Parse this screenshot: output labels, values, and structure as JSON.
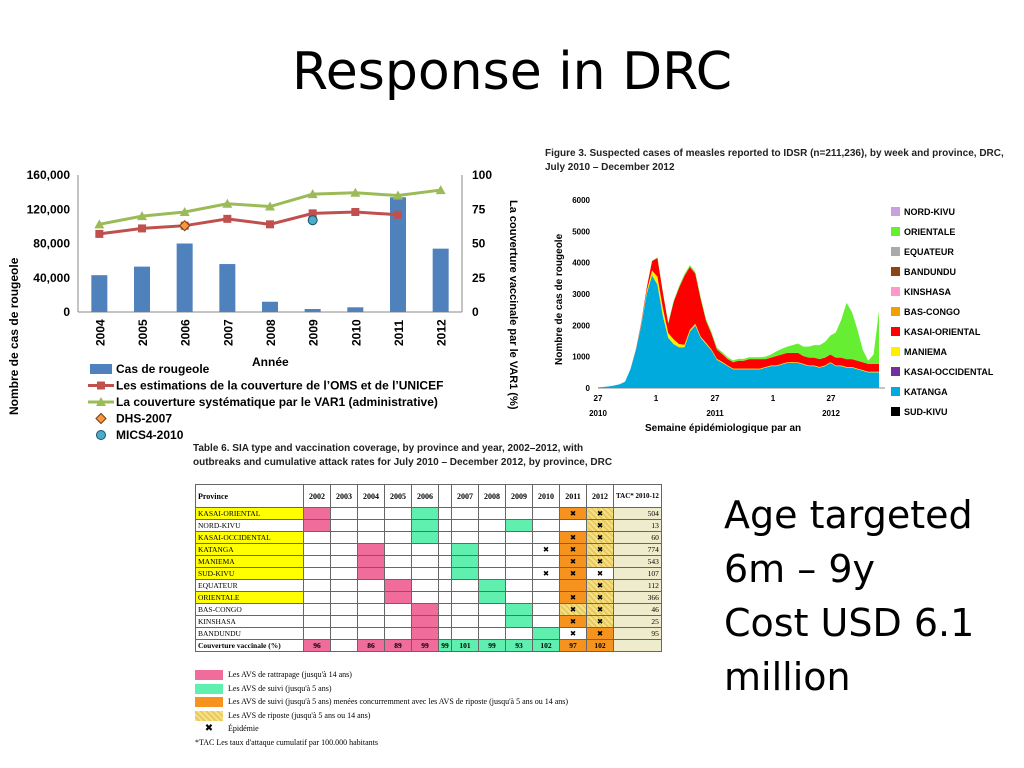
{
  "slide": {
    "title": "Response in DRC",
    "note_lines": [
      "Age targeted",
      "6m – 9y",
      "Cost USD 6.1",
      "million"
    ]
  },
  "chart_data": [
    {
      "type": "bar",
      "categories": [
        "2004",
        "2005",
        "2006",
        "2007",
        "2008",
        "2009",
        "2010",
        "2011",
        "2012"
      ],
      "series": [
        {
          "name": "Cas de rougeole",
          "type": "bar",
          "axis": "left",
          "color": "#4f81bd",
          "values": [
            43000,
            53000,
            80000,
            56000,
            12000,
            3500,
            5500,
            134000,
            74000
          ]
        },
        {
          "name": "Les estimations de la couverture de l’OMS et de l’UNICEF",
          "type": "line",
          "axis": "right",
          "color": "#c0504d",
          "values": [
            57,
            61,
            63,
            68,
            64,
            72,
            73,
            71,
            null
          ]
        },
        {
          "name": "La couverture systématique par le VAR1 (administrative)",
          "type": "line",
          "axis": "right",
          "color": "#9bbb59",
          "values": [
            64,
            70,
            73,
            79,
            77,
            86,
            87,
            85,
            89
          ]
        },
        {
          "name": "DHS-2007",
          "type": "point",
          "axis": "right",
          "color": "#f79646",
          "x": "2006",
          "value": 63
        },
        {
          "name": "MICS4-2010",
          "type": "point",
          "axis": "right",
          "color": "#4bacc6",
          "x": "2009",
          "value": 67
        }
      ],
      "xlabel": "Année",
      "ylabel": "Nombre de cas de rougeole",
      "ylabel_right": "La couverture vaccinale par le VAR1 (%)",
      "ylim": [
        0,
        160000
      ],
      "ylim_right": [
        0,
        100
      ],
      "yticks": [
        "0",
        "40,000",
        "80,000",
        "120,000",
        "160,000"
      ],
      "yticks_right": [
        "0",
        "25",
        "50",
        "75",
        "100"
      ],
      "grid": false,
      "legend": "bottom"
    },
    {
      "type": "area",
      "title": "Figure 3. Suspected cases of measles reported to IDSR (n=211,236), by week and province, DRC, July 2010 – December 2012",
      "xlabel": "Semaine épidémiologique par an",
      "ylabel": "Nombre de cas de rougeole",
      "ylim": [
        0,
        6000
      ],
      "yticks": [
        "0",
        "1000",
        "2000",
        "3000",
        "4000",
        "5000",
        "6000"
      ],
      "xticks": [
        "27",
        "1",
        "27",
        "1",
        "27"
      ],
      "year_labels": [
        "2010",
        "2011",
        "2012"
      ],
      "legend": "right",
      "series": [
        {
          "name": "NORD-KIVU",
          "color": "#c9a0dc"
        },
        {
          "name": "ORIENTALE",
          "color": "#66ee33",
          "values": [
            0,
            0,
            0,
            0,
            0,
            0,
            0,
            0,
            0,
            0,
            10,
            20,
            30,
            40,
            40,
            50,
            60,
            60,
            60,
            60,
            60,
            60,
            60,
            60,
            60,
            60,
            60,
            60,
            60,
            60,
            60,
            80,
            100,
            150,
            180,
            200,
            250,
            300,
            300,
            350,
            400,
            450,
            500,
            600,
            800,
            1200,
            1800,
            1500,
            1000,
            400,
            100,
            300,
            1700
          ]
        },
        {
          "name": "EQUATEUR",
          "color": "#aaaaaa"
        },
        {
          "name": "BANDUNDU",
          "color": "#8b4513"
        },
        {
          "name": "KINSHASA",
          "color": "#ff99cc"
        },
        {
          "name": "BAS-CONGO",
          "color": "#f0a000"
        },
        {
          "name": "KASAI-ORIENTAL",
          "color": "#ff0000",
          "values": [
            0,
            0,
            0,
            0,
            0,
            0,
            0,
            20,
            50,
            100,
            300,
            600,
            500,
            300,
            1200,
            1800,
            2200,
            2000,
            1600,
            1200,
            700,
            500,
            300,
            250,
            200,
            200,
            250,
            250,
            300,
            300,
            300,
            250,
            250,
            300,
            300,
            300,
            300,
            300,
            250,
            250,
            250,
            250,
            250,
            250,
            250,
            250,
            250,
            250,
            250,
            250,
            250,
            250,
            250
          ]
        },
        {
          "name": "MANIEMA",
          "color": "#ffee00",
          "values": [
            0,
            0,
            0,
            0,
            0,
            0,
            0,
            10,
            40,
            80,
            150,
            250,
            250,
            150,
            150,
            100,
            80,
            60,
            50,
            40,
            40,
            30,
            30,
            30,
            20,
            20,
            20,
            20,
            20,
            20,
            20,
            20,
            20,
            20,
            20,
            20,
            20,
            20,
            20,
            20,
            20,
            20,
            20,
            20,
            20,
            20,
            20,
            20,
            20,
            20,
            20,
            20,
            20
          ]
        },
        {
          "name": "KASAI-OCCIDENTAL",
          "color": "#7030a0"
        },
        {
          "name": "KATANGA",
          "color": "#00aadd",
          "values": [
            20,
            30,
            50,
            80,
            120,
            200,
            600,
            1200,
            2000,
            3000,
            3600,
            3300,
            2300,
            1600,
            1400,
            1300,
            1300,
            1800,
            2000,
            1600,
            1400,
            1200,
            900,
            800,
            700,
            600,
            600,
            600,
            600,
            600,
            600,
            650,
            700,
            700,
            750,
            800,
            800,
            800,
            750,
            700,
            700,
            650,
            700,
            800,
            700,
            700,
            650,
            650,
            600,
            550,
            500,
            500,
            500
          ]
        },
        {
          "name": "SUD-KIVU",
          "color": "#000000"
        }
      ]
    },
    {
      "type": "table",
      "title": "Table 6. SIA type and vaccination coverage, by province and year, 2002–2012, with outbreaks and cumulative attack rates for July 2010 – December 2012, by province, DRC",
      "columns": [
        "Province",
        "2002",
        "2003",
        "2004",
        "2005",
        "2006",
        "",
        "2007",
        "2008",
        "2009",
        "2010",
        "2011",
        "2012",
        "TAC* 2010-12"
      ],
      "rows": [
        {
          "province": "KASAI-ORIENTAL",
          "hl": true,
          "cells": [
            "ctch",
            "",
            "",
            "",
            "foll",
            "",
            "",
            "",
            "",
            "",
            "conc-x",
            "resp-x"
          ],
          "tac": "504"
        },
        {
          "province": "NORD-KIVU",
          "hl": false,
          "cells": [
            "ctch",
            "",
            "",
            "",
            "foll",
            "",
            "",
            "",
            "foll",
            "",
            "",
            "resp-x"
          ],
          "tac": "13"
        },
        {
          "province": "KASAI-OCCIDENTAL",
          "hl": true,
          "cells": [
            "",
            "",
            "",
            "",
            "foll",
            "",
            "",
            "",
            "",
            "",
            "conc-x",
            "resp-x"
          ],
          "tac": "60"
        },
        {
          "province": "KATANGA",
          "hl": true,
          "cells": [
            "",
            "",
            "ctch",
            "",
            "",
            "",
            "foll",
            "",
            "",
            "x",
            "conc-x",
            "resp-x"
          ],
          "tac": "774"
        },
        {
          "province": "MANIEMA",
          "hl": true,
          "cells": [
            "",
            "",
            "ctch",
            "",
            "",
            "",
            "foll",
            "",
            "",
            "",
            "conc-x",
            "resp-x"
          ],
          "tac": "543"
        },
        {
          "province": "SUD-KIVU",
          "hl": true,
          "cells": [
            "",
            "",
            "ctch",
            "",
            "",
            "",
            "foll",
            "",
            "",
            "x",
            "conc-x",
            "x"
          ],
          "tac": "107"
        },
        {
          "province": "EQUATEUR",
          "hl": false,
          "cells": [
            "",
            "",
            "",
            "ctch",
            "",
            "",
            "",
            "foll",
            "",
            "",
            "conc",
            "resp-x"
          ],
          "tac": "112"
        },
        {
          "province": "ORIENTALE",
          "hl": true,
          "cells": [
            "",
            "",
            "",
            "ctch",
            "",
            "",
            "",
            "foll",
            "",
            "",
            "conc-x",
            "resp-x"
          ],
          "tac": "366"
        },
        {
          "province": "BAS-CONGO",
          "hl": false,
          "cells": [
            "",
            "",
            "",
            "",
            "ctch",
            "",
            "",
            "",
            "foll",
            "",
            "resp-x",
            "resp-x"
          ],
          "tac": "46"
        },
        {
          "province": "KINSHASA",
          "hl": false,
          "cells": [
            "",
            "",
            "",
            "",
            "ctch",
            "",
            "",
            "",
            "foll",
            "",
            "conc-x",
            "resp-x"
          ],
          "tac": "25"
        },
        {
          "province": "BANDUNDU",
          "hl": false,
          "cells": [
            "",
            "",
            "",
            "",
            "ctch",
            "",
            "",
            "",
            "",
            "foll",
            "x",
            "conc-x"
          ],
          "tac": "95"
        }
      ],
      "coverage_row": {
        "label": "Couverture vaccinale (%)",
        "values": [
          "96",
          "",
          "86",
          "89",
          "99",
          "99",
          "101",
          "99",
          "93",
          "102",
          "97",
          "102"
        ]
      },
      "legend": [
        {
          "key": "ctch",
          "label": "Les AVS de rattrapage (jusqu'à 14 ans)"
        },
        {
          "key": "foll",
          "label": "Les AVS de suivi (jusqu'à 5 ans)"
        },
        {
          "key": "conc",
          "label": "Les AVS de suivi (jusqu'à 5 ans) menées concurremment avec les AVS de riposte (jusqu'à 5 ans ou 14 ans)"
        },
        {
          "key": "resp",
          "label": "Les AVS de riposte (jusqu'à 5 ans ou 14 ans)"
        },
        {
          "key": "x",
          "label": "Épidémie"
        },
        {
          "key": "tac",
          "label": "*TAC  Les taux d'attaque cumulatif par 100.000 habitants"
        }
      ]
    }
  ]
}
